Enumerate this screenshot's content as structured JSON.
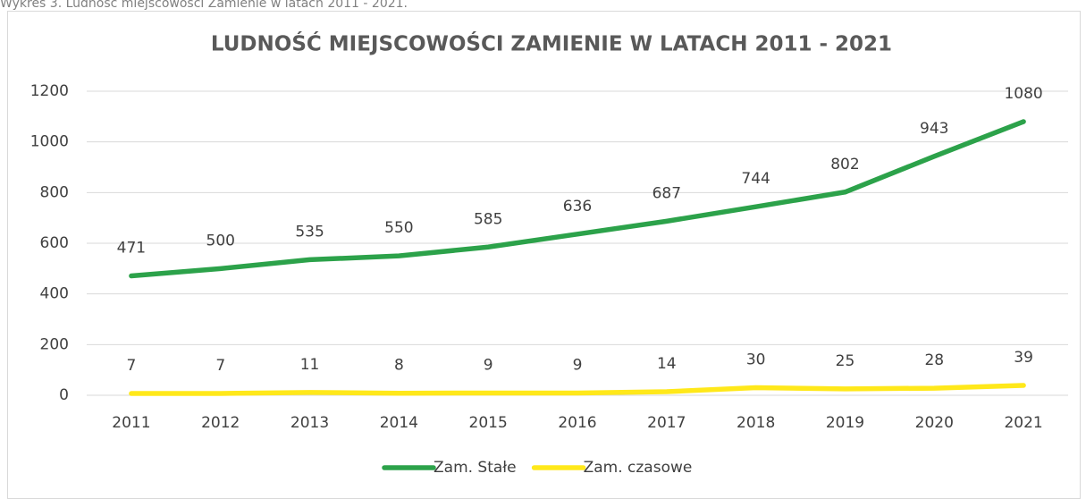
{
  "caption": "Wykres 3. Ludność miejscowości Zamienie w latach 2011 - 2021.",
  "chart_data": {
    "type": "line",
    "title": "LUDNOŚĆ MIEJSCOWOŚCI ZAMIENIE W LATACH 2011 - 2021",
    "categories": [
      "2011",
      "2012",
      "2013",
      "2014",
      "2015",
      "2016",
      "2017",
      "2018",
      "2019",
      "2020",
      "2021"
    ],
    "series": [
      {
        "name": "Zam. Stałe",
        "color": "#2ca24a",
        "values": [
          471,
          500,
          535,
          550,
          585,
          636,
          687,
          744,
          802,
          943,
          1080
        ]
      },
      {
        "name": "Zam. czasowe",
        "color": "#ffe81a",
        "values": [
          7,
          7,
          11,
          8,
          9,
          9,
          14,
          30,
          25,
          28,
          39
        ]
      }
    ],
    "ylim": [
      0,
      1200
    ],
    "yticks": [
      0,
      200,
      400,
      600,
      800,
      1000,
      1200
    ],
    "grid": true,
    "legend": "bottom"
  }
}
